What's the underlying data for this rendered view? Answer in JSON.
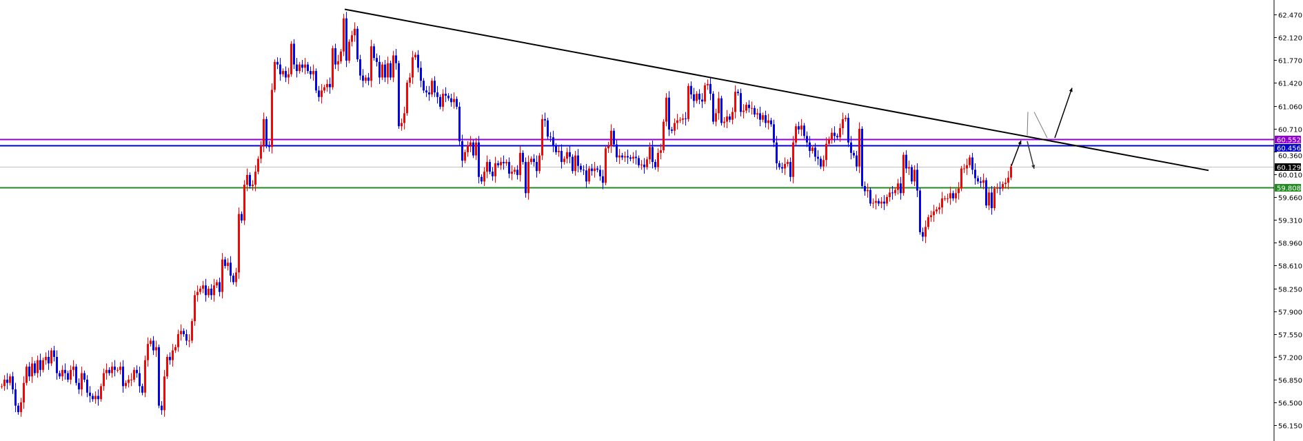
{
  "chart_data": {
    "type": "candlestick",
    "title": "",
    "xlabel": "",
    "ylabel": "",
    "ylim": [
      55.95,
      62.69
    ],
    "grid": false,
    "colors": {
      "bull": "#FF0000",
      "bear": "#0000FF",
      "background": "#FFFFFF",
      "axis": "#000000"
    },
    "y_ticks": [
      "62.470",
      "62.120",
      "61.770",
      "61.420",
      "61.060",
      "60.710",
      "60.360",
      "60.010",
      "59.660",
      "59.310",
      "58.960",
      "58.610",
      "58.250",
      "57.900",
      "57.550",
      "57.200",
      "56.850",
      "56.500",
      "56.150"
    ],
    "close": [
      56.75,
      56.85,
      56.8,
      56.9,
      56.7,
      56.45,
      56.35,
      56.5,
      56.8,
      57.05,
      56.9,
      57.1,
      56.95,
      57.15,
      57.0,
      57.15,
      57.2,
      57.1,
      57.3,
      57.2,
      56.95,
      56.9,
      57.0,
      56.95,
      56.85,
      57.0,
      57.05,
      56.8,
      56.7,
      56.95,
      56.85,
      56.65,
      56.6,
      56.55,
      56.6,
      56.55,
      56.75,
      56.95,
      57.0,
      56.95,
      57.05,
      57.0,
      57.0,
      57.05,
      56.75,
      56.8,
      56.85,
      56.85,
      57.0,
      56.95,
      56.75,
      56.65,
      57.15,
      57.4,
      57.45,
      57.3,
      57.35,
      56.45,
      56.38,
      56.9,
      57.2,
      57.15,
      57.3,
      57.35,
      57.55,
      57.6,
      57.55,
      57.45,
      57.45,
      57.75,
      58.15,
      58.2,
      58.25,
      58.3,
      58.15,
      58.25,
      58.15,
      58.3,
      58.35,
      58.2,
      58.7,
      58.6,
      58.65,
      58.45,
      58.35,
      58.5,
      59.4,
      59.3,
      59.85,
      60.0,
      59.83,
      59.85,
      60.05,
      60.25,
      60.45,
      60.86,
      60.45,
      60.43,
      61.31,
      61.74,
      61.7,
      61.55,
      61.6,
      61.5,
      61.55,
      62.02,
      61.7,
      61.6,
      61.7,
      61.65,
      61.7,
      61.6,
      61.55,
      61.6,
      61.3,
      61.2,
      61.3,
      61.35,
      61.4,
      61.35,
      61.95,
      61.7,
      61.75,
      61.9,
      62.41,
      61.76,
      62.05,
      62.15,
      62.25,
      61.78,
      61.53,
      61.45,
      61.5,
      61.45,
      61.98,
      61.8,
      61.74,
      61.5,
      61.7,
      61.5,
      61.72,
      61.5,
      61.84,
      61.72,
      60.75,
      60.8,
      60.95,
      61.42,
      61.5,
      61.81,
      61.85,
      61.65,
      61.45,
      61.3,
      61.27,
      61.24,
      61.45,
      61.27,
      61.2,
      61.05,
      61.25,
      61.22,
      61.18,
      61.12,
      61.17,
      61.05,
      60.52,
      60.22,
      60.35,
      60.45,
      60.5,
      60.3,
      60.5,
      59.97,
      59.9,
      60.05,
      60.2,
      60.05,
      59.98,
      60.18,
      60.15,
      60.2,
      60.18,
      60.2,
      60.02,
      60.05,
      60.08,
      60.0,
      60.34,
      60.2,
      59.72,
      60.2,
      60.25,
      60.2,
      60.06,
      60.3,
      60.86,
      60.84,
      60.59,
      60.58,
      60.45,
      60.35,
      60.37,
      60.2,
      60.25,
      60.35,
      60.28,
      60.06,
      60.3,
      60.14,
      60.08,
      60.07,
      59.9,
      60.1,
      60.06,
      60.1,
      60.08,
      59.98,
      59.88,
      60.41,
      60.44,
      60.68,
      60.47,
      60.27,
      60.3,
      60.27,
      60.29,
      60.27,
      60.25,
      60.28,
      60.26,
      60.15,
      60.16,
      60.12,
      60.24,
      60.43,
      60.2,
      60.12,
      60.34,
      60.38,
      60.82,
      61.19,
      60.7,
      60.68,
      60.8,
      60.84,
      60.85,
      60.87,
      60.86,
      61.37,
      61.24,
      61.14,
      61.25,
      61.16,
      61.13,
      61.38,
      61.4,
      61.25,
      60.82,
      60.95,
      61.18,
      60.8,
      60.82,
      60.9,
      60.85,
      60.97,
      61.28,
      61.26,
      60.97,
      60.99,
      61.08,
      61.03,
      61.03,
      60.93,
      60.95,
      60.85,
      60.92,
      60.8,
      60.84,
      60.78,
      60.5,
      60.18,
      60.12,
      60.1,
      60.17,
      60.2,
      59.97,
      60.5,
      60.75,
      60.7,
      60.76,
      60.6,
      60.5,
      60.37,
      60.42,
      60.28,
      60.25,
      60.13,
      60.23,
      60.48,
      60.55,
      60.65,
      60.6,
      60.58,
      60.72,
      60.86,
      60.88,
      60.5,
      60.34,
      60.3,
      60.13,
      60.71,
      59.83,
      59.75,
      59.77,
      59.56,
      59.57,
      59.6,
      59.56,
      59.59,
      59.56,
      59.66,
      59.73,
      59.72,
      59.77,
      59.87,
      59.72,
      60.31,
      60.1,
      60.12,
      59.9,
      60.08,
      59.76,
      59.12,
      59.05,
      59.2,
      59.35,
      59.38,
      59.44,
      59.47,
      59.5,
      59.64,
      59.64,
      59.64,
      59.72,
      59.64,
      59.72,
      59.79,
      60.1,
      60.1,
      60.15,
      60.27,
      60.08,
      59.95,
      59.9,
      59.88,
      59.92,
      59.53,
      59.73,
      59.49,
      59.79,
      59.8,
      59.79,
      59.86,
      59.88,
      59.96,
      60.13
    ],
    "levels": [
      {
        "price": 60.552,
        "label": "60.552",
        "color": "#9400D3"
      },
      {
        "price": 60.456,
        "label": "60.456",
        "color": "#0000CD"
      },
      {
        "price": 60.129,
        "label": "60.129",
        "color": "#C0C0C0",
        "label_bg": "#000000"
      },
      {
        "price": 59.808,
        "label": "59.808",
        "color": "#228B22"
      }
    ],
    "trendline": {
      "from": [
        124.5,
        62.55
      ],
      "to": [
        437.75,
        60.07
      ],
      "color": "#000000"
    },
    "drawings": [
      {
        "type": "arrow",
        "from": [
          366.25,
          60.14
        ],
        "to": [
          369.75,
          60.53
        ],
        "color": "#000000"
      },
      {
        "type": "line",
        "from": [
          372.0,
          60.61
        ],
        "to": [
          372.25,
          60.97
        ],
        "color": "#777777"
      },
      {
        "type": "arrow",
        "from": [
          372.0,
          60.52
        ],
        "to": [
          374.5,
          60.095
        ],
        "color": "#333333"
      },
      {
        "type": "line",
        "from": [
          374.5,
          60.97
        ],
        "to": [
          379.25,
          60.57
        ],
        "color": "#777777"
      },
      {
        "type": "arrow",
        "from": [
          382.0,
          60.57
        ],
        "to": [
          388.25,
          61.34
        ],
        "color": "#000000"
      }
    ]
  }
}
